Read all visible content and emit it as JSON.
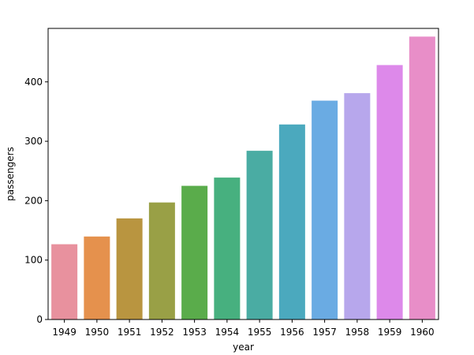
{
  "chart_data": {
    "type": "bar",
    "title": "",
    "xlabel": "year",
    "ylabel": "passengers",
    "categories": [
      "1949",
      "1950",
      "1951",
      "1952",
      "1953",
      "1954",
      "1955",
      "1956",
      "1957",
      "1958",
      "1959",
      "1960"
    ],
    "values": [
      126.7,
      139.7,
      170.2,
      197.0,
      225.0,
      238.9,
      284.0,
      328.3,
      368.4,
      381.0,
      428.3,
      476.2
    ],
    "colors": [
      "#e8919e",
      "#e5914d",
      "#b99540",
      "#99a046",
      "#5aac4b",
      "#47b07f",
      "#4aaca3",
      "#4ba9be",
      "#6aabe3",
      "#b7a7ec",
      "#dd89ea",
      "#e88ec8"
    ],
    "ylim": [
      0,
      490
    ],
    "yticks": [
      0,
      100,
      200,
      300,
      400
    ],
    "grid": false,
    "legend": "none"
  }
}
